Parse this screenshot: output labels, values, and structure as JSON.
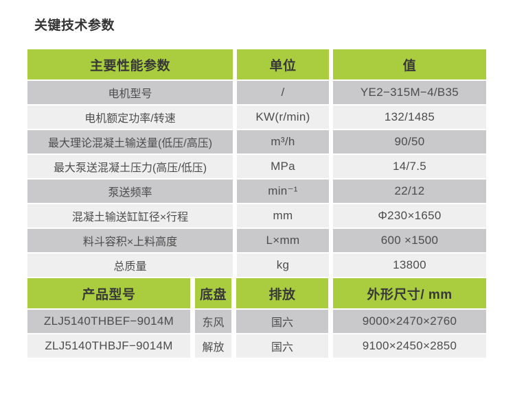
{
  "page": {
    "title": "关键技术参数"
  },
  "colors": {
    "header_green": "#a9cd3e",
    "row_dark": "#c9c9cb",
    "row_light": "#efefef",
    "text_dark": "#383838",
    "text_cell": "#4c4c4c",
    "background": "#ffffff"
  },
  "main_table": {
    "headers": [
      "主要性能参数",
      "单位",
      "值"
    ],
    "rows": [
      {
        "param": "电机型号",
        "unit": "/",
        "value": "YE2−315M−4/B35"
      },
      {
        "param": "电机额定功率/转速",
        "unit": "KW(r/min)",
        "value": "132/1485"
      },
      {
        "param": "最大理论混凝土输送量(低压/高压)",
        "unit": "m³/h",
        "value": "90/50"
      },
      {
        "param": "最大泵送混凝土压力(高压/低压)",
        "unit": "MPa",
        "value": "14/7.5"
      },
      {
        "param": "泵送频率",
        "unit": "min⁻¹",
        "value": "22/12"
      },
      {
        "param": "混凝土输送缸缸径×行程",
        "unit": "mm",
        "value": "Φ230×1650"
      },
      {
        "param": "料斗容积×上料高度",
        "unit": "L×mm",
        "value": "600 ×1500"
      },
      {
        "param": "总质量",
        "unit": "kg",
        "value": "13800"
      }
    ]
  },
  "model_table": {
    "headers": [
      "产品型号",
      "底盘",
      "排放",
      "外形尺寸/ mm"
    ],
    "rows": [
      {
        "model": "ZLJ5140THBEF−9014M",
        "chassis": "东风",
        "emission": "国六",
        "dimensions": "9000×2470×2760"
      },
      {
        "model": "ZLJ5140THBJF−9014M",
        "chassis": "解放",
        "emission": "国六",
        "dimensions": "9100×2450×2850"
      }
    ]
  }
}
